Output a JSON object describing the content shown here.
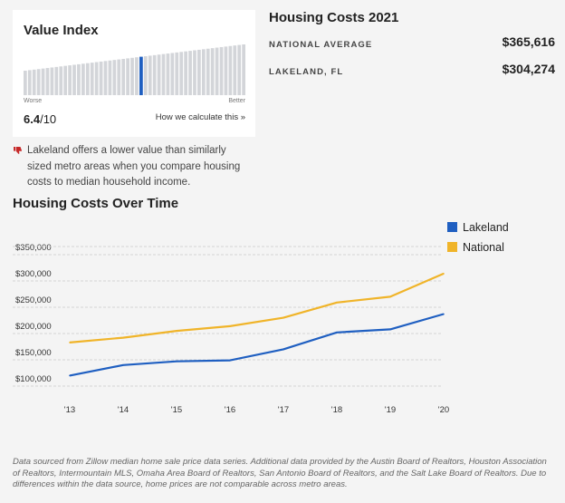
{
  "value_index": {
    "title": "Value Index",
    "worse_label": "Worse",
    "better_label": "Better",
    "score": "6.4",
    "score_suffix": "/10",
    "link_label": "How we calculate this »",
    "bar_count": 50,
    "highlight_index": 26,
    "highlight_color": "#1f5fc1",
    "bar_color": "#d3d5d9"
  },
  "note": {
    "icon": "thumbs-down-icon",
    "icon_color": "#c62828",
    "text": "Lakeland offers a lower value than similarly sized metro areas when you compare housing costs to median household income."
  },
  "housing_costs": {
    "title": "Housing Costs 2021",
    "rows": [
      {
        "label": "NATIONAL AVERAGE",
        "value": "$365,616"
      },
      {
        "label": "LAKELAND, FL",
        "value": "$304,274"
      }
    ]
  },
  "chart_data": {
    "type": "line",
    "title": "Housing Costs Over Time",
    "x": [
      "'13",
      "'14",
      "'15",
      "'16",
      "'17",
      "'18",
      "'19",
      "'20"
    ],
    "y_ticks": [
      "$100,000",
      "$150,000",
      "$200,000",
      "$250,000",
      "$300,000",
      "$350,000"
    ],
    "ylim": [
      100000,
      350000
    ],
    "grid": true,
    "legend_position": "top-right",
    "series": [
      {
        "name": "Lakeland",
        "color": "#1f5fc1",
        "values": [
          120000,
          140000,
          147000,
          149000,
          170000,
          202000,
          208000,
          237000
        ]
      },
      {
        "name": "National",
        "color": "#f0b429",
        "values": [
          183000,
          192000,
          205000,
          214000,
          230000,
          259000,
          270000,
          314000
        ]
      }
    ]
  },
  "footer": {
    "text": "Data sourced from Zillow median home sale price data series. Additional data provided by the Austin Board of Realtors, Houston Association of Realtors, Intermountain MLS, Omaha Area Board of Realtors, San Antonio Board of Realtors, and the Salt Lake Board of Realtors. Due to differences within the data source, home prices are not comparable across metro areas."
  }
}
